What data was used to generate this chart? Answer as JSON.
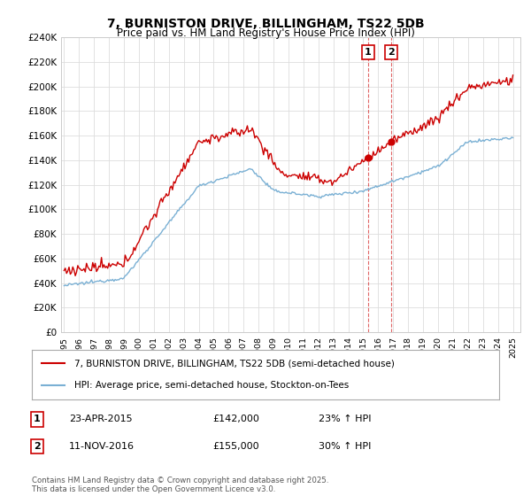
{
  "title": "7, BURNISTON DRIVE, BILLINGHAM, TS22 5DB",
  "subtitle": "Price paid vs. HM Land Registry's House Price Index (HPI)",
  "legend_line1": "7, BURNISTON DRIVE, BILLINGHAM, TS22 5DB (semi-detached house)",
  "legend_line2": "HPI: Average price, semi-detached house, Stockton-on-Tees",
  "annotation1_label": "1",
  "annotation1_date": "23-APR-2015",
  "annotation1_price": "£142,000",
  "annotation1_hpi": "23% ↑ HPI",
  "annotation1_year": 2015.3,
  "annotation2_label": "2",
  "annotation2_date": "11-NOV-2016",
  "annotation2_price": "£155,000",
  "annotation2_hpi": "30% ↑ HPI",
  "annotation2_year": 2016.87,
  "sale1_price": 142000,
  "sale2_price": 155000,
  "red_color": "#cc0000",
  "blue_color": "#7ab0d4",
  "footer": "Contains HM Land Registry data © Crown copyright and database right 2025.\nThis data is licensed under the Open Government Licence v3.0.",
  "ylim": [
    0,
    240000
  ],
  "xlim": [
    1994.8,
    2025.5
  ],
  "yticks": [
    0,
    20000,
    40000,
    60000,
    80000,
    100000,
    120000,
    140000,
    160000,
    180000,
    200000,
    220000,
    240000
  ],
  "xticks": [
    1995,
    1996,
    1997,
    1998,
    1999,
    2000,
    2001,
    2002,
    2003,
    2004,
    2005,
    2006,
    2007,
    2008,
    2009,
    2010,
    2011,
    2012,
    2013,
    2014,
    2015,
    2016,
    2017,
    2018,
    2019,
    2020,
    2021,
    2022,
    2023,
    2024,
    2025
  ]
}
